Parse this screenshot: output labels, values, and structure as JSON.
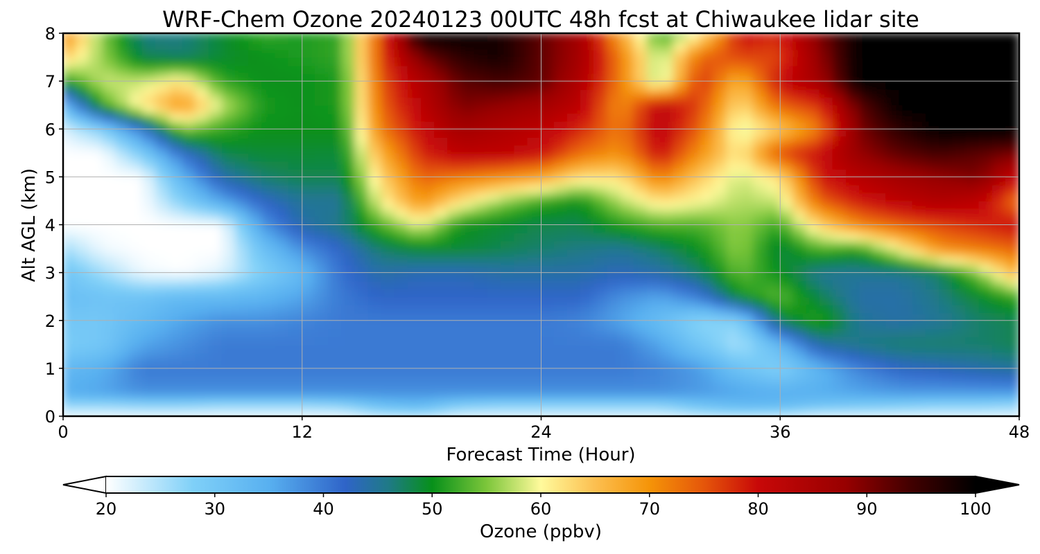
{
  "chart_data": {
    "type": "heatmap",
    "title": "WRF-Chem Ozone  20240123 00UTC 48h fcst at Chiwaukee lidar site",
    "xlabel": "Forecast Time (Hour)",
    "ylabel": "Alt AGL (km)",
    "xlim": [
      0,
      48
    ],
    "ylim": [
      0,
      8
    ],
    "xticks": [
      0,
      12,
      24,
      36,
      48
    ],
    "yticks": [
      0,
      1,
      2,
      3,
      4,
      5,
      6,
      7,
      8
    ],
    "grid": true,
    "colorbar": {
      "label": "Ozone  (ppbv)",
      "range": [
        20,
        100
      ],
      "ticks": [
        20,
        30,
        40,
        50,
        60,
        70,
        80,
        90,
        100
      ],
      "extend": "both",
      "stops": [
        {
          "value": 20,
          "color": "#ffffff"
        },
        {
          "value": 28,
          "color": "#7fd0f8"
        },
        {
          "value": 35,
          "color": "#58b0f0"
        },
        {
          "value": 42,
          "color": "#2f64c8"
        },
        {
          "value": 46,
          "color": "#1f7a86"
        },
        {
          "value": 50,
          "color": "#07901a"
        },
        {
          "value": 55,
          "color": "#7cc63a"
        },
        {
          "value": 60,
          "color": "#fffa9c"
        },
        {
          "value": 65,
          "color": "#fcbf50"
        },
        {
          "value": 70,
          "color": "#f59408"
        },
        {
          "value": 75,
          "color": "#e5560a"
        },
        {
          "value": 80,
          "color": "#c80808"
        },
        {
          "value": 88,
          "color": "#980000"
        },
        {
          "value": 94,
          "color": "#420000"
        },
        {
          "value": 100,
          "color": "#000000"
        }
      ]
    },
    "hours": [
      0,
      2,
      4,
      6,
      8,
      10,
      12,
      14,
      16,
      18,
      20,
      22,
      24,
      26,
      28,
      30,
      32,
      34,
      36,
      38,
      40,
      42,
      44,
      46,
      48
    ],
    "altitudes_km": [
      0,
      0.25,
      0.5,
      1,
      1.5,
      2,
      2.5,
      3,
      3.5,
      4,
      4.5,
      5,
      5.5,
      6,
      6.5,
      7,
      7.5,
      8
    ],
    "ozone_ppbv": [
      [
        21,
        21,
        21,
        21,
        21,
        21,
        21,
        21,
        24,
        25,
        22,
        22,
        22,
        22,
        22,
        22,
        24,
        25,
        24,
        22,
        22,
        22,
        22,
        22,
        22
      ],
      [
        27,
        27,
        28,
        28,
        27,
        27,
        27,
        28,
        32,
        33,
        29,
        28,
        28,
        28,
        28,
        28,
        31,
        33,
        33,
        31,
        30,
        29,
        28,
        28,
        27
      ],
      [
        35,
        36,
        38,
        38,
        38,
        38,
        38,
        38,
        38,
        38,
        38,
        38,
        38,
        38,
        38,
        38,
        37,
        36,
        35,
        35,
        36,
        37,
        37,
        37,
        37
      ],
      [
        33,
        35,
        40,
        40,
        40,
        40,
        40,
        40,
        40,
        40,
        40,
        40,
        40,
        40,
        40,
        39,
        37,
        31,
        28,
        34,
        39,
        42,
        43,
        44,
        45
      ],
      [
        29,
        30,
        36,
        38,
        40,
        40,
        40,
        40,
        40,
        40,
        40,
        40,
        40,
        40,
        40,
        36,
        30,
        25,
        33,
        44,
        46,
        47,
        47,
        47,
        48
      ],
      [
        30,
        30,
        33,
        36,
        38,
        38,
        39,
        40,
        40,
        40,
        40,
        40,
        40,
        39,
        36,
        32,
        27,
        28,
        48,
        52,
        45,
        44,
        45,
        47,
        48
      ],
      [
        32,
        31,
        31,
        33,
        33,
        34,
        36,
        40,
        42,
        42,
        42,
        42,
        42,
        42,
        38,
        36,
        40,
        50,
        54,
        48,
        44,
        44,
        46,
        49,
        52
      ],
      [
        31,
        26,
        21,
        20,
        22,
        28,
        33,
        41,
        44,
        43,
        43,
        44,
        44,
        44,
        43,
        44,
        47,
        54,
        50,
        45,
        45,
        45,
        47,
        55,
        67
      ],
      [
        26,
        21,
        20,
        20,
        20,
        31,
        38,
        42,
        47,
        49,
        49,
        48,
        47,
        46,
        45,
        47,
        50,
        56,
        48,
        53,
        51,
        60,
        70,
        72,
        74
      ],
      [
        20,
        20,
        20,
        20,
        20,
        37,
        44,
        46,
        53,
        59,
        50,
        49,
        48,
        48,
        51,
        53,
        53,
        56,
        52,
        63,
        71,
        74,
        76,
        78,
        80
      ],
      [
        20,
        20,
        20,
        28,
        36,
        42,
        45,
        45,
        60,
        70,
        62,
        56,
        52,
        50,
        57,
        62,
        60,
        57,
        58,
        74,
        79,
        82,
        84,
        82,
        72
      ],
      [
        20,
        20,
        20,
        34,
        44,
        47,
        48,
        48,
        63,
        74,
        72,
        70,
        68,
        62,
        62,
        72,
        64,
        58,
        62,
        79,
        83,
        86,
        88,
        90,
        80
      ],
      [
        20,
        20,
        29,
        41,
        48,
        49,
        49,
        49,
        67,
        78,
        82,
        82,
        80,
        73,
        70,
        80,
        70,
        61,
        76,
        80,
        88,
        92,
        94,
        92,
        90
      ],
      [
        22,
        28,
        40,
        55,
        52,
        50,
        50,
        50,
        72,
        80,
        86,
        84,
        82,
        78,
        72,
        82,
        74,
        58,
        64,
        72,
        90,
        96,
        100,
        100,
        100
      ],
      [
        32,
        52,
        62,
        70,
        58,
        51,
        50,
        51,
        74,
        82,
        90,
        88,
        86,
        82,
        70,
        82,
        76,
        62,
        74,
        77,
        92,
        100,
        100,
        100,
        100
      ],
      [
        50,
        58,
        58,
        62,
        52,
        50,
        50,
        51,
        75,
        84,
        92,
        94,
        92,
        84,
        72,
        56,
        78,
        66,
        80,
        86,
        100,
        100,
        100,
        100,
        100
      ],
      [
        64,
        56,
        48,
        47,
        49,
        50,
        51,
        52,
        76,
        90,
        96,
        98,
        92,
        86,
        72,
        56,
        74,
        76,
        76,
        88,
        100,
        100,
        100,
        100,
        100
      ],
      [
        72,
        55,
        46,
        46,
        49,
        52,
        51,
        52,
        76,
        100,
        100,
        98,
        92,
        86,
        68,
        52,
        60,
        80,
        78,
        90,
        100,
        100,
        100,
        100,
        100
      ]
    ]
  }
}
